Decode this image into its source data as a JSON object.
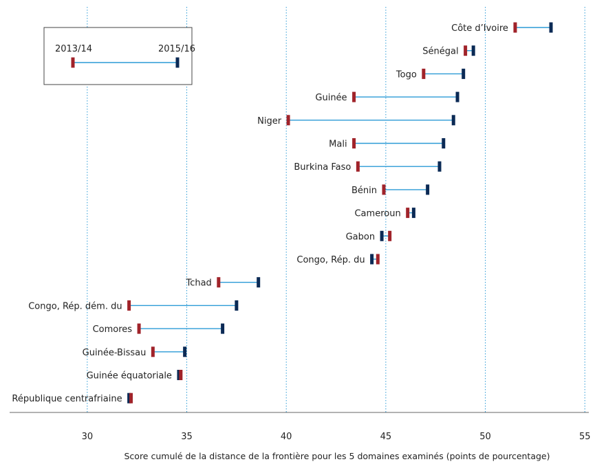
{
  "chart_data": {
    "type": "dumbbell",
    "xlabel": "Score cumulé de la distance de la frontière pour les 5 domaines examinés (points de pourcentage)",
    "ylabel": "",
    "xlim": [
      26.1,
      55.2
    ],
    "x_ticks": [
      30,
      35,
      40,
      45,
      50,
      55
    ],
    "grid": "vertical dotted",
    "legend": {
      "placement": "top-left",
      "start_label": "2013/14",
      "end_label": "2015/16"
    },
    "colors": {
      "start": "#a0232a",
      "end": "#0b2a55",
      "connector": "#2a9ad6",
      "grid": "#2a9ad6"
    },
    "categories": [
      "Côte d’Ivoire",
      "Sénégal",
      "Togo",
      "Guinée",
      "Niger",
      "Mali",
      "Burkina Faso",
      "Bénin",
      "Cameroun",
      "Gabon",
      "Congo, Rép. du",
      "Tchad",
      "Congo, Rép. dém. du",
      "Comores",
      "Guinée-Bissau",
      "Guinée équatoriale",
      "République centrafriaine"
    ],
    "series": [
      {
        "name": "2013/14",
        "values": [
          51.5,
          49.0,
          46.9,
          43.4,
          40.1,
          43.4,
          43.6,
          44.9,
          46.1,
          45.2,
          44.6,
          36.6,
          32.1,
          32.6,
          33.3,
          34.7,
          32.2
        ]
      },
      {
        "name": "2015/16",
        "values": [
          53.3,
          49.4,
          48.9,
          48.6,
          48.4,
          47.9,
          47.7,
          47.1,
          46.4,
          44.8,
          44.3,
          38.6,
          37.5,
          36.8,
          34.9,
          34.6,
          32.1
        ]
      }
    ]
  }
}
